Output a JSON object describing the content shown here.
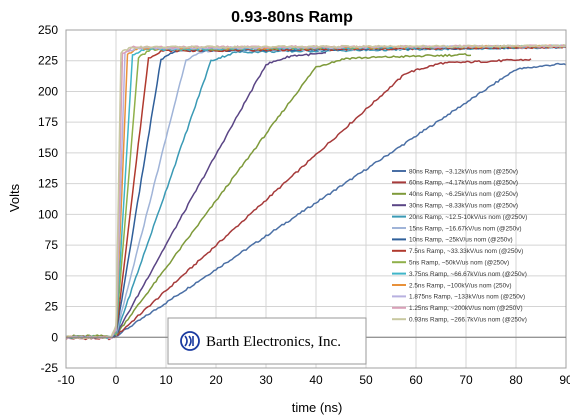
{
  "chart_data": {
    "type": "line",
    "title": "0.93-80ns Ramp",
    "xlabel": "time (ns)",
    "ylabel": "Volts",
    "xlim": [
      -10,
      90
    ],
    "ylim": [
      -25,
      250
    ],
    "x_ticks": [
      -10,
      0,
      10,
      20,
      30,
      40,
      50,
      60,
      70,
      80,
      90
    ],
    "y_ticks": [
      -25,
      0,
      25,
      50,
      75,
      100,
      125,
      150,
      175,
      200,
      225,
      250
    ],
    "grid": true,
    "legend_position": "right",
    "series": [
      {
        "name": "80ns Ramp, ~3.12kV/us nom (@250v)",
        "color": "#4a6fa5",
        "points": [
          [
            -10,
            0
          ],
          [
            -1,
            0
          ],
          [
            0,
            1
          ],
          [
            80,
            218
          ],
          [
            88,
            222
          ],
          [
            90,
            222
          ]
        ]
      },
      {
        "name": "60ns Ramp, ~4.17kV/us nom (@250v)",
        "color": "#a63a3a",
        "points": [
          [
            -10,
            -1
          ],
          [
            -1,
            -1
          ],
          [
            0,
            1
          ],
          [
            58,
            215
          ],
          [
            65,
            223
          ],
          [
            83,
            226
          ]
        ]
      },
      {
        "name": "40ns Ramp, ~6.25kV/us nom (@250v)",
        "color": "#7e9a3a",
        "points": [
          [
            -10,
            1
          ],
          [
            -1,
            1
          ],
          [
            0,
            2
          ],
          [
            40,
            220
          ],
          [
            46,
            227
          ],
          [
            71,
            230
          ]
        ]
      },
      {
        "name": "30ns Ramp, ~8.33kV/us nom (@250v)",
        "color": "#5a4585",
        "points": [
          [
            -10,
            0
          ],
          [
            -1,
            0
          ],
          [
            0,
            2
          ],
          [
            30,
            222
          ],
          [
            35,
            229
          ],
          [
            42,
            231
          ]
        ]
      },
      {
        "name": "20ns Ramp, ~12.5-10kV/us nom (@250v)",
        "color": "#3a9ab5",
        "points": [
          [
            -10,
            0
          ],
          [
            -1,
            0
          ],
          [
            0,
            2
          ],
          [
            19,
            225
          ],
          [
            24,
            232
          ],
          [
            90,
            236
          ]
        ]
      },
      {
        "name": "15ns Ramp, ~16.67kV/us nom (@250v)",
        "color": "#a0b4d8",
        "points": [
          [
            -10,
            0
          ],
          [
            -1,
            0
          ],
          [
            0,
            2
          ],
          [
            14,
            226
          ],
          [
            18,
            233
          ],
          [
            90,
            236
          ]
        ]
      },
      {
        "name": "10ns Ramp, ~25kV/us nom (@250v)",
        "color": "#2f5f9a",
        "points": [
          [
            -10,
            0
          ],
          [
            -1,
            0
          ],
          [
            0,
            2
          ],
          [
            9,
            226
          ],
          [
            12,
            233
          ],
          [
            90,
            236
          ]
        ]
      },
      {
        "name": "7.5ns Ramp, ~33.33kV/us nom (@250v)",
        "color": "#b03a2e",
        "points": [
          [
            -10,
            0
          ],
          [
            -1,
            0
          ],
          [
            0,
            3
          ],
          [
            6.5,
            227
          ],
          [
            9,
            233
          ],
          [
            90,
            236
          ]
        ]
      },
      {
        "name": "5ns Ramp, ~50kV/us nom (@250v)",
        "color": "#8fb04a",
        "points": [
          [
            -10,
            0
          ],
          [
            -1,
            0
          ],
          [
            0,
            3
          ],
          [
            4.5,
            228
          ],
          [
            7,
            234
          ],
          [
            90,
            237
          ]
        ]
      },
      {
        "name": "3.75ns Ramp, ~66.67kV/us nom (@250v)",
        "color": "#3fb5c8",
        "points": [
          [
            -10,
            0
          ],
          [
            -1,
            0
          ],
          [
            0,
            4
          ],
          [
            3.3,
            229
          ],
          [
            5.5,
            234
          ],
          [
            90,
            237
          ]
        ]
      },
      {
        "name": "2.5ns Ramp, ~100kV/us nom (250v)",
        "color": "#e8913a",
        "points": [
          [
            -10,
            0
          ],
          [
            -1,
            0
          ],
          [
            0,
            5
          ],
          [
            2.3,
            230
          ],
          [
            4.5,
            235
          ],
          [
            90,
            237
          ]
        ]
      },
      {
        "name": "1.875ns Ramp, ~133kV/us nom (@250v)",
        "color": "#b8b0e0",
        "points": [
          [
            -10,
            0
          ],
          [
            -1,
            0
          ],
          [
            0,
            6
          ],
          [
            1.8,
            231
          ],
          [
            4,
            235
          ],
          [
            90,
            237
          ]
        ]
      },
      {
        "name": "1.25ns Ramp, ~200kV/us nom (@250V)",
        "color": "#d9a0b8",
        "points": [
          [
            -10,
            0
          ],
          [
            -1,
            0
          ],
          [
            0,
            8
          ],
          [
            1.3,
            231
          ],
          [
            3.5,
            236
          ],
          [
            90,
            237
          ]
        ]
      },
      {
        "name": "0.93ns Ramp, ~266.7kV/us nom (@250v)",
        "color": "#c8c8a0",
        "points": [
          [
            -10,
            0
          ],
          [
            -1,
            0
          ],
          [
            0,
            10
          ],
          [
            1,
            232
          ],
          [
            3,
            236
          ],
          [
            90,
            237
          ]
        ]
      }
    ]
  },
  "logo": {
    "text": "Barth Electronics, Inc.",
    "color": "#1a3aa0"
  }
}
